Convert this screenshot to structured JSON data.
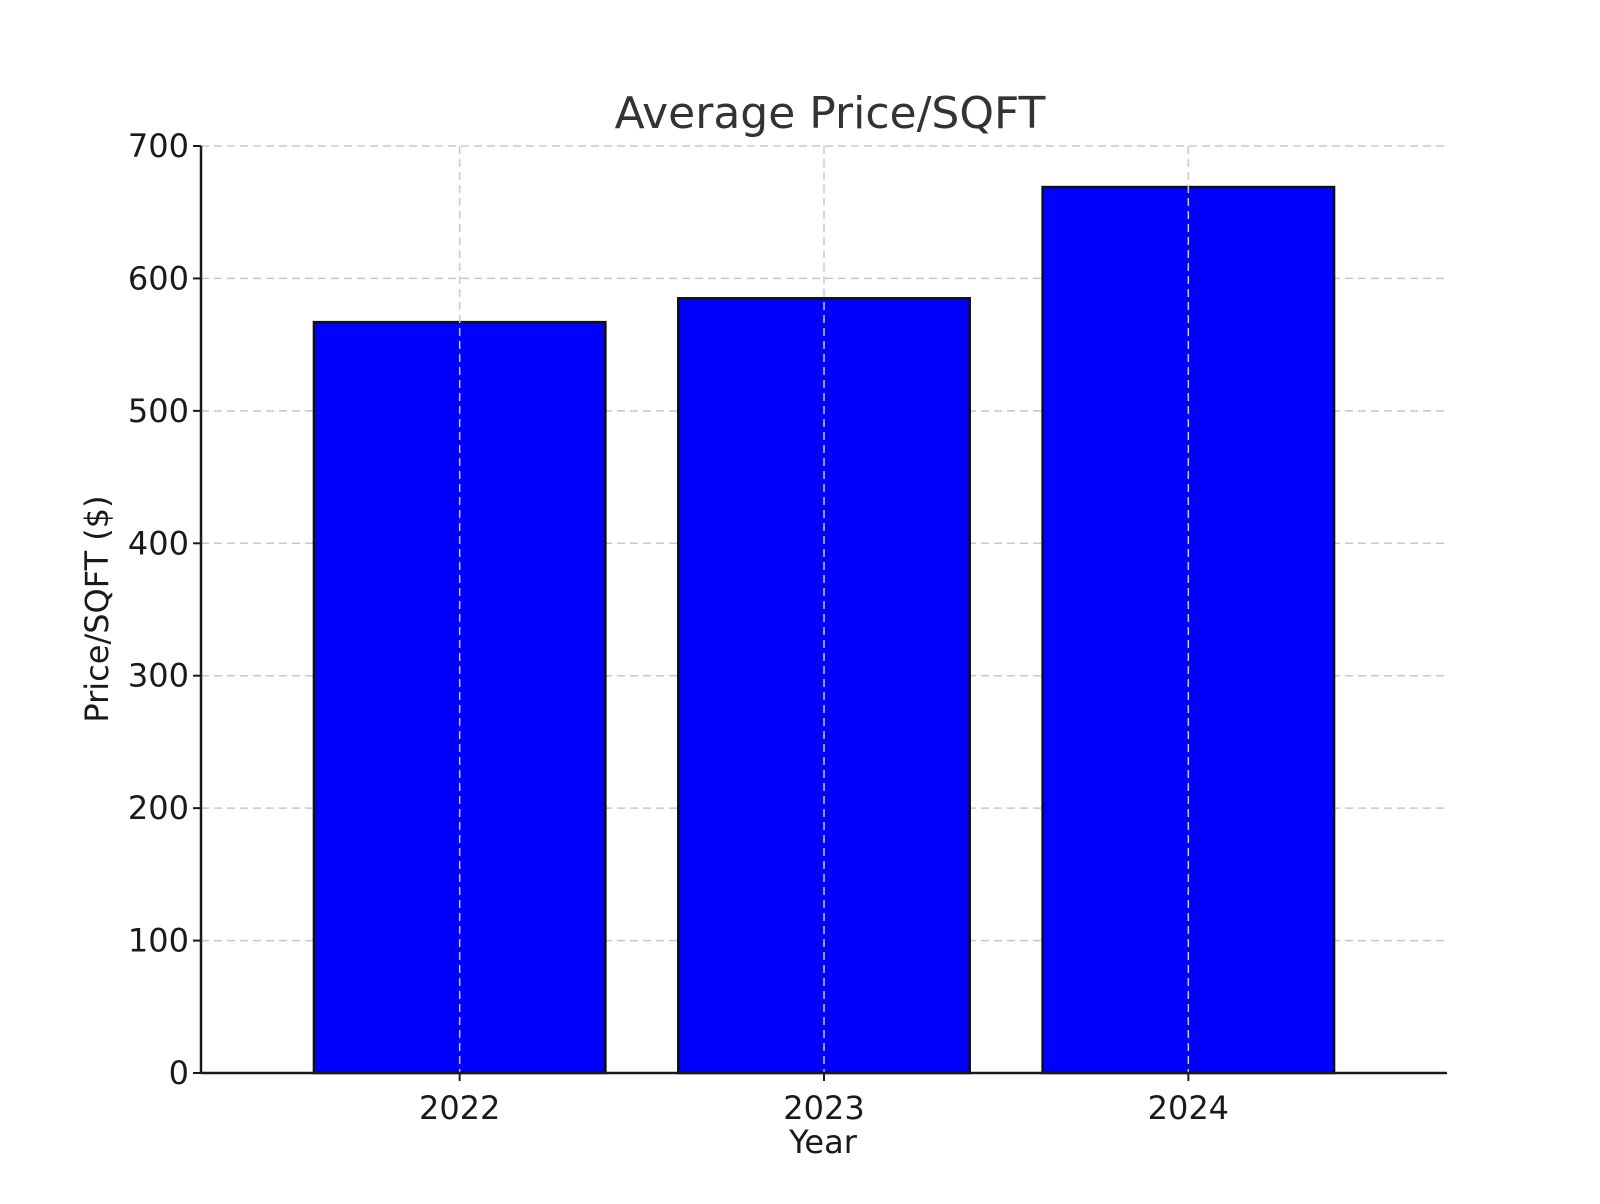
{
  "chart_data": {
    "type": "bar",
    "title": "Average Price/SQFT",
    "xlabel": "Year",
    "ylabel": "Price/SQFT ($)",
    "categories": [
      "2022",
      "2023",
      "2024"
    ],
    "values": [
      567,
      585,
      669
    ],
    "ylim": [
      0,
      700
    ],
    "yticks": [
      0,
      100,
      200,
      300,
      400,
      500,
      600,
      700
    ],
    "ytick_labels": [
      "0",
      "100",
      "200",
      "300",
      "400",
      "500",
      "600",
      "700"
    ],
    "grid": true,
    "legend": "none",
    "colors": {
      "bar_fill": "#0000ff",
      "bar_edge": "#111111"
    }
  }
}
